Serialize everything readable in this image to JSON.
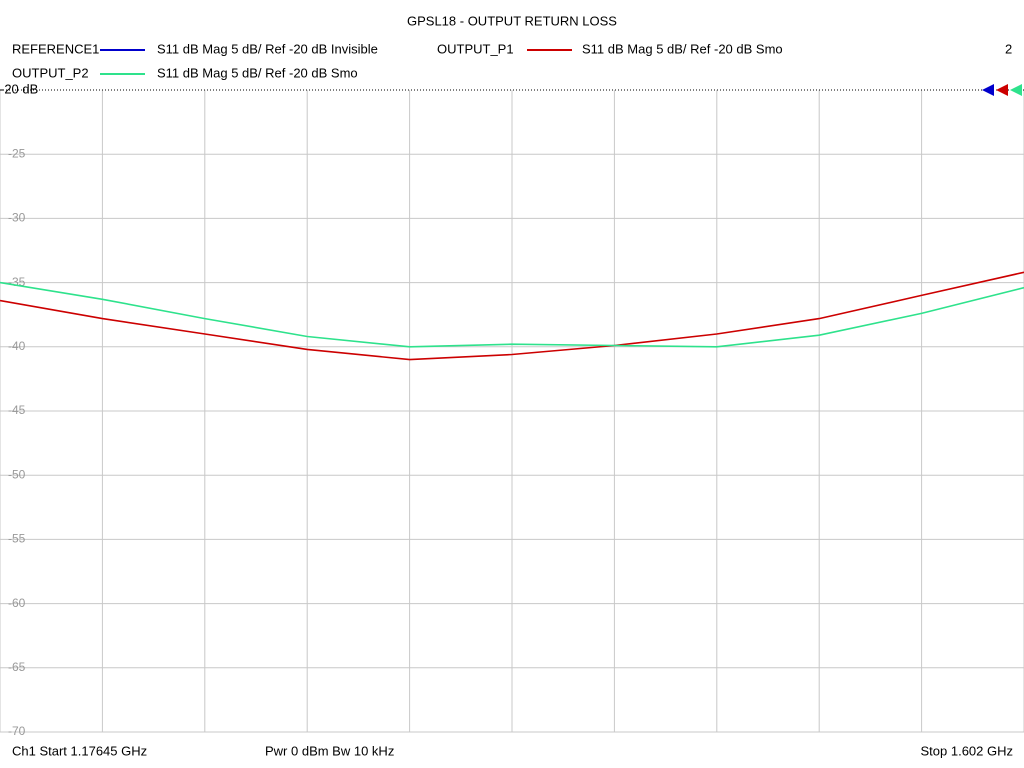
{
  "chart_data": {
    "type": "line",
    "title": "GPSL18 - OUTPUT RETURN LOSS",
    "x": [
      1.17645,
      1.219,
      1.2616,
      1.3041,
      1.3467,
      1.3892,
      1.4318,
      1.4743,
      1.5169,
      1.5594,
      1.602
    ],
    "series": [
      {
        "name": "REFERENCE1",
        "color": "#0000cc",
        "description": "S11  dB Mag  5 dB/ Ref -20 dB  Invisible"
      },
      {
        "name": "OUTPUT_P1",
        "color": "#cc0000",
        "description": "S11  dB Mag  5 dB/ Ref -20 dB  Smo",
        "values": [
          -36.4,
          -37.8,
          -39.0,
          -40.2,
          -41.0,
          -40.6,
          -39.9,
          -39.0,
          -37.8,
          -36.0,
          -34.2
        ]
      },
      {
        "name": "OUTPUT_P2",
        "color": "#2ee28c",
        "description": "S11  dB Mag  5 dB/ Ref -20 dB  Smo",
        "values": [
          -35.0,
          -36.3,
          -37.8,
          -39.2,
          -40.0,
          -39.8,
          -39.9,
          -40.0,
          -39.1,
          -37.4,
          -35.4
        ]
      }
    ],
    "channel_count": 2,
    "xlim": [
      1.17645,
      1.602
    ],
    "ylim": [
      -70,
      -20
    ],
    "yticks": [
      {
        "value": -20,
        "label": "-20 dB"
      },
      -25,
      -30,
      -35,
      -40,
      -45,
      -50,
      -55,
      -60,
      -65,
      -70
    ],
    "grid": true,
    "footer_left": "Ch1  Start  1.17645 GHz",
    "footer_center": "Pwr  0 dBm  Bw  10 kHz",
    "footer_right": "Stop  1.602 GHz"
  }
}
